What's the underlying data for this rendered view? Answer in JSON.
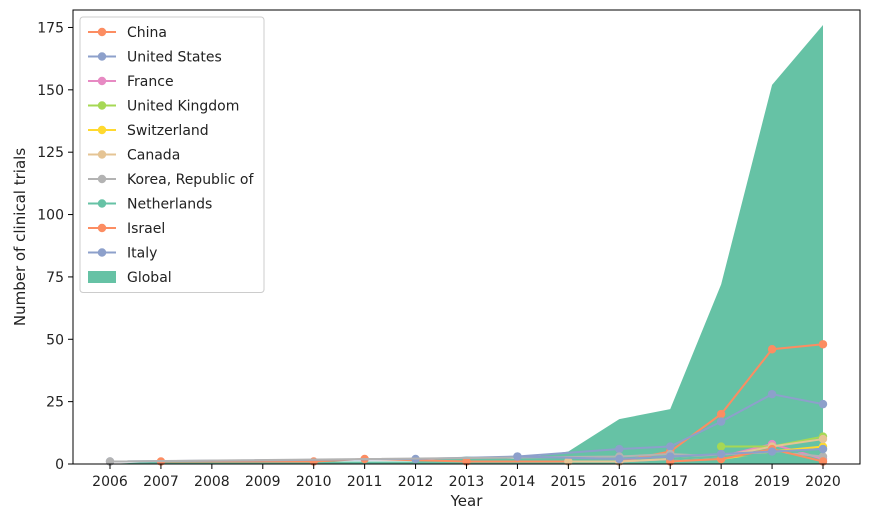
{
  "chart_data": {
    "type": "line",
    "xlabel": "Year",
    "ylabel": "Number of clinical trials",
    "title": "",
    "x": [
      2006,
      2007,
      2008,
      2009,
      2010,
      2011,
      2012,
      2013,
      2014,
      2015,
      2016,
      2017,
      2018,
      2019,
      2020
    ],
    "x_tick_labels": [
      "2006",
      "2007",
      "2008",
      "2009",
      "2010",
      "2011",
      "2012",
      "2013",
      "2014",
      "2015",
      "2016",
      "2017",
      "2018",
      "2019",
      "2020"
    ],
    "ylim": [
      0,
      182
    ],
    "y_ticks": [
      0,
      25,
      50,
      75,
      100,
      125,
      150,
      175
    ],
    "y_tick_labels": [
      "0",
      "25",
      "50",
      "75",
      "100",
      "125",
      "150",
      "175"
    ],
    "grid": false,
    "legend_position": "top-left",
    "global_area": {
      "name": "Global",
      "color": "#66c2a5",
      "values": [
        0,
        1,
        1,
        1,
        1,
        1,
        1,
        3,
        2,
        5,
        18,
        22,
        72,
        152,
        176
      ]
    },
    "series": [
      {
        "name": "China",
        "color": "#fc8d62",
        "values": [
          null,
          1,
          null,
          null,
          1,
          2,
          null,
          1,
          null,
          null,
          1,
          5,
          20,
          46,
          48
        ]
      },
      {
        "name": "United States",
        "color": "#8da0cb",
        "values": [
          1,
          null,
          null,
          null,
          null,
          null,
          2,
          null,
          3,
          null,
          6,
          7,
          17,
          28,
          24
        ]
      },
      {
        "name": "France",
        "color": "#e78ac3",
        "values": [
          null,
          null,
          null,
          null,
          null,
          null,
          null,
          null,
          null,
          null,
          1,
          2,
          3,
          8,
          2
        ]
      },
      {
        "name": "United Kingdom",
        "color": "#a6d854",
        "values": [
          null,
          null,
          null,
          null,
          null,
          null,
          null,
          null,
          null,
          null,
          null,
          null,
          7,
          7,
          11
        ]
      },
      {
        "name": "Switzerland",
        "color": "#ffd92f",
        "values": [
          null,
          null,
          null,
          null,
          null,
          null,
          null,
          null,
          null,
          null,
          null,
          null,
          2,
          5,
          7
        ]
      },
      {
        "name": "Canada",
        "color": "#e5c494",
        "values": [
          null,
          null,
          null,
          null,
          null,
          null,
          null,
          null,
          null,
          1,
          1,
          2,
          3,
          7,
          10
        ]
      },
      {
        "name": "Korea, Republic of",
        "color": "#b3b3b3",
        "values": [
          1,
          null,
          null,
          null,
          null,
          null,
          null,
          null,
          null,
          null,
          3,
          4,
          3,
          5,
          3
        ]
      },
      {
        "name": "Netherlands",
        "color": "#66c2a5",
        "values": [
          null,
          null,
          null,
          null,
          null,
          null,
          null,
          null,
          null,
          null,
          null,
          2,
          3,
          4,
          6
        ]
      },
      {
        "name": "Israel",
        "color": "#fc8d62",
        "values": [
          null,
          null,
          null,
          null,
          null,
          null,
          null,
          null,
          null,
          null,
          null,
          1,
          2,
          6,
          1
        ]
      },
      {
        "name": "Italy",
        "color": "#8da0cb",
        "values": [
          null,
          null,
          null,
          null,
          null,
          null,
          null,
          null,
          3,
          null,
          2,
          3,
          4,
          5,
          6
        ]
      }
    ]
  }
}
